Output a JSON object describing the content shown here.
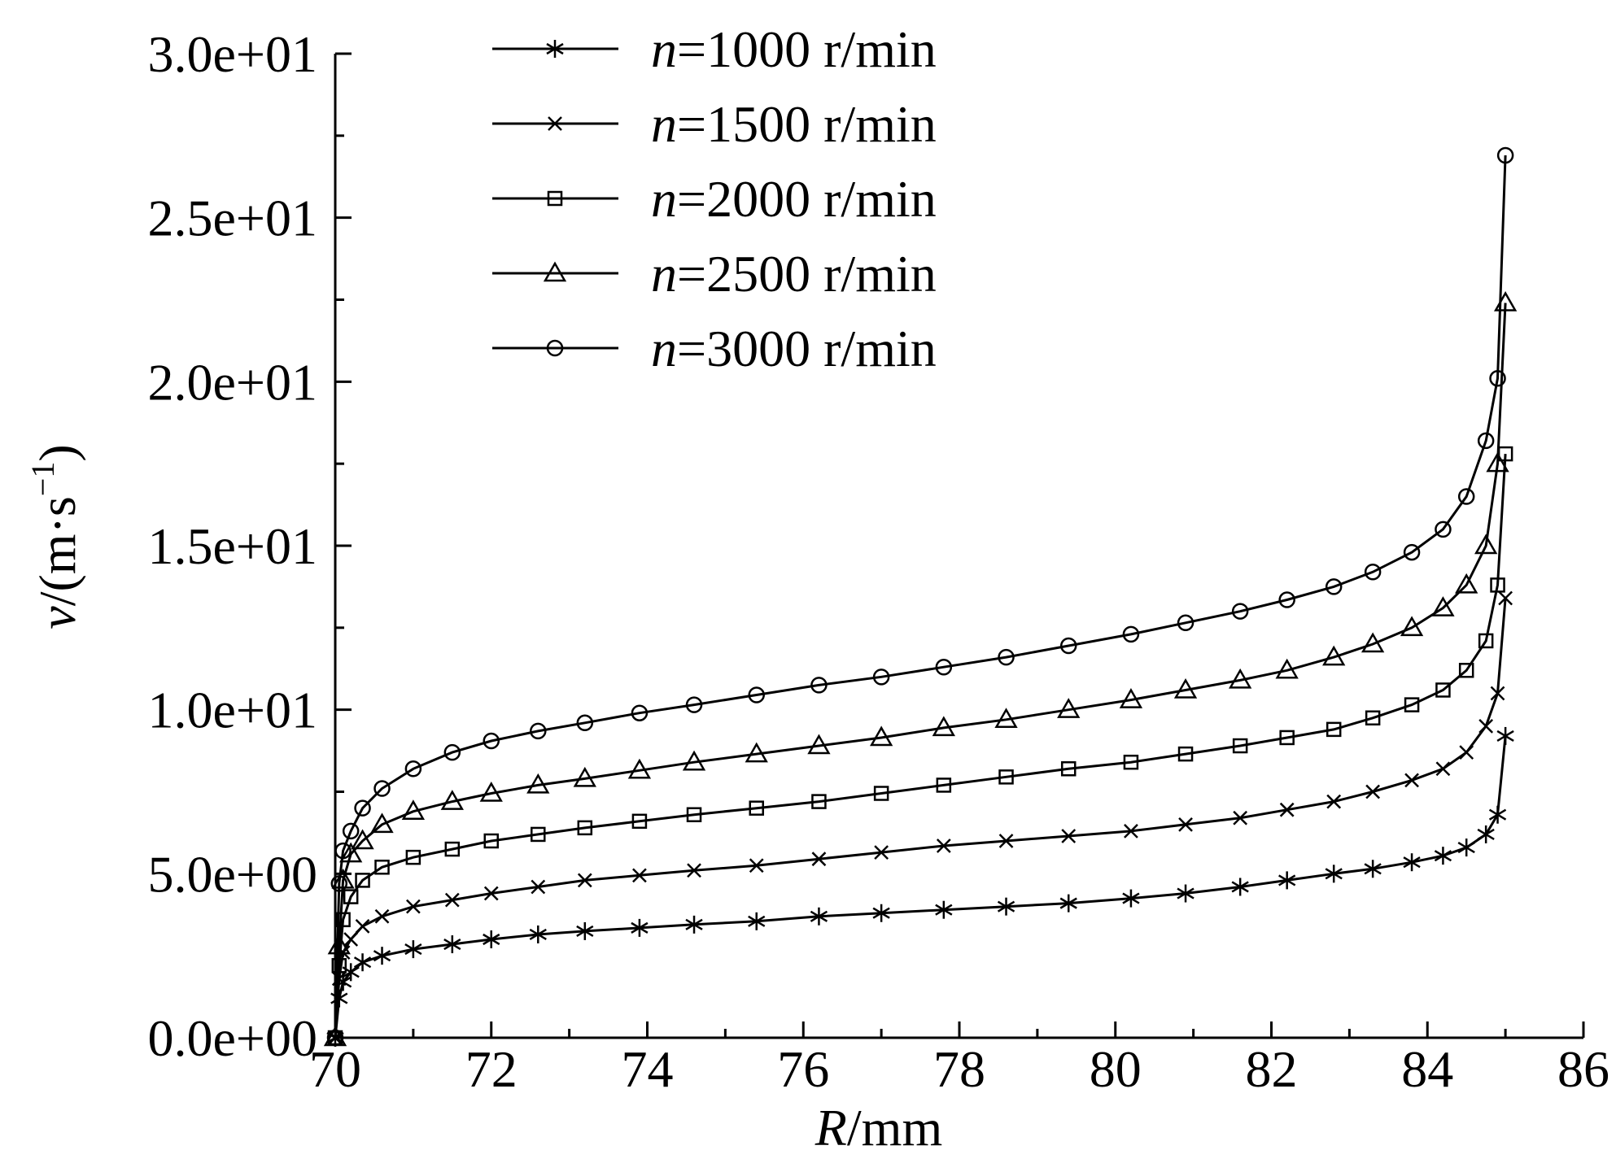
{
  "chart_data": {
    "type": "line",
    "xlabel_italic": "R",
    "xlabel_unit": "/mm",
    "ylabel_italic": "v",
    "ylabel_unit": "/(m·s",
    "ylabel_exp": "−1",
    "ylabel_close": ")",
    "xlim": [
      70,
      86
    ],
    "ylim": [
      0,
      30
    ],
    "x_ticks": [
      "70",
      "72",
      "74",
      "76",
      "78",
      "80",
      "82",
      "84",
      "86"
    ],
    "y_ticks": [
      "0.0e+00",
      "5.0e+00",
      "1.0e+01",
      "1.5e+01",
      "2.0e+01",
      "2.5e+01",
      "3.0e+01"
    ],
    "legend_position": "top-left",
    "series": [
      {
        "name_italic": "n",
        "name_rest": "=1000 r/min",
        "marker": "asterisk",
        "points": [
          [
            70.0,
            0.0
          ],
          [
            70.05,
            1.2
          ],
          [
            70.1,
            1.7
          ],
          [
            70.2,
            2.0
          ],
          [
            70.35,
            2.3
          ],
          [
            70.6,
            2.5
          ],
          [
            71.0,
            2.7
          ],
          [
            71.5,
            2.85
          ],
          [
            72.0,
            3.0
          ],
          [
            72.6,
            3.15
          ],
          [
            73.2,
            3.25
          ],
          [
            73.9,
            3.35
          ],
          [
            74.6,
            3.45
          ],
          [
            75.4,
            3.55
          ],
          [
            76.2,
            3.7
          ],
          [
            77.0,
            3.8
          ],
          [
            77.8,
            3.9
          ],
          [
            78.6,
            4.0
          ],
          [
            79.4,
            4.1
          ],
          [
            80.2,
            4.25
          ],
          [
            80.9,
            4.4
          ],
          [
            81.6,
            4.6
          ],
          [
            82.2,
            4.8
          ],
          [
            82.8,
            5.0
          ],
          [
            83.3,
            5.15
          ],
          [
            83.8,
            5.35
          ],
          [
            84.2,
            5.55
          ],
          [
            84.5,
            5.8
          ],
          [
            84.75,
            6.2
          ],
          [
            84.9,
            6.8
          ],
          [
            85.0,
            9.2
          ]
        ]
      },
      {
        "name_italic": "n",
        "name_rest": "=1500 r/min",
        "marker": "x",
        "points": [
          [
            70.0,
            0.0
          ],
          [
            70.05,
            1.8
          ],
          [
            70.1,
            2.6
          ],
          [
            70.2,
            3.0
          ],
          [
            70.35,
            3.4
          ],
          [
            70.6,
            3.7
          ],
          [
            71.0,
            4.0
          ],
          [
            71.5,
            4.2
          ],
          [
            72.0,
            4.4
          ],
          [
            72.6,
            4.6
          ],
          [
            73.2,
            4.8
          ],
          [
            73.9,
            4.95
          ],
          [
            74.6,
            5.1
          ],
          [
            75.4,
            5.25
          ],
          [
            76.2,
            5.45
          ],
          [
            77.0,
            5.65
          ],
          [
            77.8,
            5.85
          ],
          [
            78.6,
            6.0
          ],
          [
            79.4,
            6.15
          ],
          [
            80.2,
            6.3
          ],
          [
            80.9,
            6.5
          ],
          [
            81.6,
            6.7
          ],
          [
            82.2,
            6.95
          ],
          [
            82.8,
            7.2
          ],
          [
            83.3,
            7.5
          ],
          [
            83.8,
            7.85
          ],
          [
            84.2,
            8.2
          ],
          [
            84.5,
            8.7
          ],
          [
            84.75,
            9.5
          ],
          [
            84.9,
            10.5
          ],
          [
            85.0,
            13.4
          ]
        ]
      },
      {
        "name_italic": "n",
        "name_rest": "=2000 r/min",
        "marker": "square",
        "points": [
          [
            70.0,
            0.0
          ],
          [
            70.05,
            2.2
          ],
          [
            70.1,
            3.6
          ],
          [
            70.2,
            4.3
          ],
          [
            70.35,
            4.8
          ],
          [
            70.6,
            5.2
          ],
          [
            71.0,
            5.5
          ],
          [
            71.5,
            5.75
          ],
          [
            72.0,
            6.0
          ],
          [
            72.6,
            6.2
          ],
          [
            73.2,
            6.4
          ],
          [
            73.9,
            6.6
          ],
          [
            74.6,
            6.8
          ],
          [
            75.4,
            7.0
          ],
          [
            76.2,
            7.2
          ],
          [
            77.0,
            7.45
          ],
          [
            77.8,
            7.7
          ],
          [
            78.6,
            7.95
          ],
          [
            79.4,
            8.2
          ],
          [
            80.2,
            8.4
          ],
          [
            80.9,
            8.65
          ],
          [
            81.6,
            8.9
          ],
          [
            82.2,
            9.15
          ],
          [
            82.8,
            9.4
          ],
          [
            83.3,
            9.75
          ],
          [
            83.8,
            10.15
          ],
          [
            84.2,
            10.6
          ],
          [
            84.5,
            11.2
          ],
          [
            84.75,
            12.1
          ],
          [
            84.9,
            13.8
          ],
          [
            85.0,
            17.8
          ]
        ]
      },
      {
        "name_italic": "n",
        "name_rest": "=2500 r/min",
        "marker": "triangle",
        "points": [
          [
            70.0,
            0.0
          ],
          [
            70.05,
            2.8
          ],
          [
            70.1,
            4.8
          ],
          [
            70.2,
            5.6
          ],
          [
            70.35,
            6.0
          ],
          [
            70.6,
            6.5
          ],
          [
            71.0,
            6.9
          ],
          [
            71.5,
            7.2
          ],
          [
            72.0,
            7.45
          ],
          [
            72.6,
            7.7
          ],
          [
            73.2,
            7.9
          ],
          [
            73.9,
            8.15
          ],
          [
            74.6,
            8.4
          ],
          [
            75.4,
            8.65
          ],
          [
            76.2,
            8.9
          ],
          [
            77.0,
            9.15
          ],
          [
            77.8,
            9.45
          ],
          [
            78.6,
            9.7
          ],
          [
            79.4,
            10.0
          ],
          [
            80.2,
            10.3
          ],
          [
            80.9,
            10.6
          ],
          [
            81.6,
            10.9
          ],
          [
            82.2,
            11.2
          ],
          [
            82.8,
            11.6
          ],
          [
            83.3,
            12.0
          ],
          [
            83.8,
            12.5
          ],
          [
            84.2,
            13.1
          ],
          [
            84.5,
            13.8
          ],
          [
            84.75,
            15.0
          ],
          [
            84.9,
            17.5
          ],
          [
            85.0,
            22.4
          ]
        ]
      },
      {
        "name_italic": "n",
        "name_rest": "=3000 r/min",
        "marker": "circle",
        "points": [
          [
            70.0,
            0.0
          ],
          [
            70.05,
            4.7
          ],
          [
            70.1,
            5.7
          ],
          [
            70.2,
            6.3
          ],
          [
            70.35,
            7.0
          ],
          [
            70.6,
            7.6
          ],
          [
            71.0,
            8.2
          ],
          [
            71.5,
            8.7
          ],
          [
            72.0,
            9.05
          ],
          [
            72.6,
            9.35
          ],
          [
            73.2,
            9.6
          ],
          [
            73.9,
            9.9
          ],
          [
            74.6,
            10.15
          ],
          [
            75.4,
            10.45
          ],
          [
            76.2,
            10.75
          ],
          [
            77.0,
            11.0
          ],
          [
            77.8,
            11.3
          ],
          [
            78.6,
            11.6
          ],
          [
            79.4,
            11.95
          ],
          [
            80.2,
            12.3
          ],
          [
            80.9,
            12.65
          ],
          [
            81.6,
            13.0
          ],
          [
            82.2,
            13.35
          ],
          [
            82.8,
            13.75
          ],
          [
            83.3,
            14.2
          ],
          [
            83.8,
            14.8
          ],
          [
            84.2,
            15.5
          ],
          [
            84.5,
            16.5
          ],
          [
            84.75,
            18.2
          ],
          [
            84.9,
            20.1
          ],
          [
            85.0,
            26.9
          ]
        ]
      }
    ]
  }
}
